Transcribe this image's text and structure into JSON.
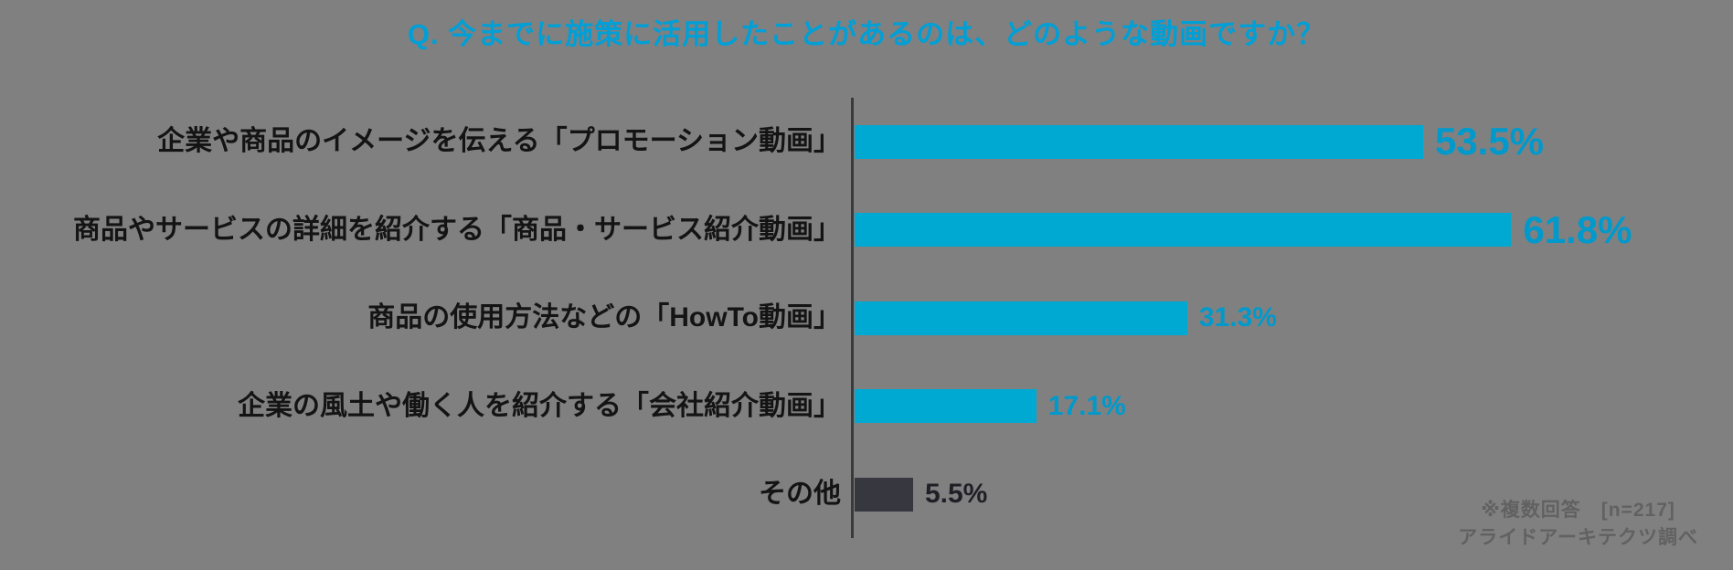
{
  "background_color": "#808080",
  "title": {
    "text": "Q. 今までに施策に活用したことがあるのは、どのような動画ですか？",
    "color": "#009FD6"
  },
  "chart_data": {
    "type": "bar",
    "orientation": "horizontal",
    "unit": "percent",
    "categories": [
      "企業や商品のイメージを伝える「プロモーション動画」",
      "商品やサービスの詳細を紹介する「商品・サービス紹介動画」",
      "商品の使用方法などの「HowTo動画」",
      "企業の風土や働く人を紹介する「会社紹介動画」",
      "その他"
    ],
    "values": [
      53.5,
      61.8,
      31.3,
      17.1,
      5.5
    ],
    "value_labels": [
      "53.5%",
      "61.8%",
      "31.3%",
      "17.1%",
      "5.5%"
    ],
    "bar_colors": [
      "#00A9D2",
      "#00A9D2",
      "#00A9D2",
      "#00A9D2",
      "#373740"
    ],
    "value_colors": [
      "#0099CC",
      "#0099CC",
      "#0099CC",
      "#0099CC",
      "#1F1F26"
    ],
    "value_emphasis": [
      true,
      true,
      false,
      false,
      false
    ],
    "xlim": [
      0,
      80
    ],
    "grid": false,
    "legend": false,
    "axis_line_color": "#3A3A3A"
  },
  "footnote": {
    "line1": "※複数回答　[n=217]",
    "line2": "アライドアーキテクツ調べ"
  }
}
